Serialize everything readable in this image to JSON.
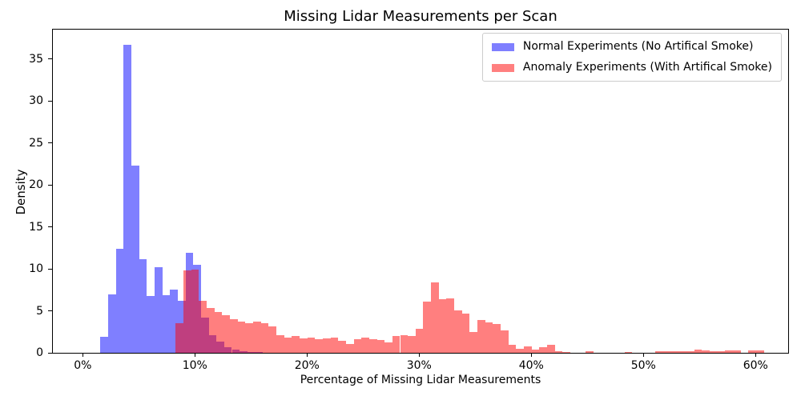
{
  "chart_data": {
    "type": "histogram",
    "title": "Missing Lidar Measurements per Scan",
    "xlabel": "Percentage of Missing Lidar Measurements",
    "ylabel": "Density",
    "grid": false,
    "background_color": "#ffffff",
    "legend": {
      "position": "upper right",
      "border_color": "#cccccc"
    },
    "x_axis": {
      "unit": "percent",
      "tick_values": [
        0,
        10,
        20,
        30,
        40,
        50,
        60
      ],
      "tick_labels": [
        "0%",
        "10%",
        "20%",
        "30%",
        "40%",
        "50%",
        "60%"
      ],
      "range_pct": [
        -2.66,
        62.98
      ]
    },
    "y_axis": {
      "tick_values": [
        0,
        5,
        10,
        15,
        20,
        25,
        30,
        35
      ],
      "tick_labels": [
        "0",
        "5",
        "10",
        "15",
        "20",
        "25",
        "30",
        "35"
      ],
      "range": [
        0,
        38.6
      ]
    },
    "series": [
      {
        "name": "Normal Experiments (No Artifical Smoke)",
        "fill": "rgba(0,0,255,0.5)",
        "legend_color": "#7f7fff",
        "bin_start_pct": 1.57,
        "bin_width_pct": 0.69,
        "densities": [
          1.9,
          7.0,
          12.4,
          36.7,
          22.3,
          11.2,
          6.8,
          10.2,
          6.9,
          7.5,
          6.2,
          11.95,
          10.45,
          4.2,
          2.1,
          1.3,
          0.7,
          0.4,
          0.2,
          0.1,
          0.08
        ]
      },
      {
        "name": "Anomaly Experiments (With Artifical Smoke)",
        "fill": "rgba(255,0,0,0.5)",
        "legend_color": "#ff7f7f",
        "bin_start_pct": 8.29,
        "bin_width_pct": 0.69,
        "densities": [
          3.5,
          9.8,
          9.95,
          6.2,
          5.35,
          4.9,
          4.5,
          4.0,
          3.75,
          3.5,
          3.7,
          3.5,
          3.1,
          2.1,
          1.8,
          2.0,
          1.7,
          1.8,
          1.6,
          1.7,
          1.8,
          1.4,
          1.05,
          1.6,
          1.8,
          1.6,
          1.5,
          1.2,
          2.0,
          2.1,
          2.0,
          2.9,
          6.1,
          8.4,
          6.4,
          6.45,
          5.05,
          4.7,
          2.45,
          3.9,
          3.6,
          3.4,
          2.65,
          1.0,
          0.5,
          0.73,
          0.41,
          0.64,
          0.95,
          0.22,
          0.1,
          0,
          0,
          0.16,
          0,
          0,
          0,
          0,
          0.13,
          0,
          0,
          0,
          0.15,
          0.15,
          0.15,
          0.15,
          0.15,
          0.41,
          0.32,
          0.15,
          0.16,
          0.3,
          0.27,
          0,
          0.27,
          0.27
        ]
      }
    ]
  }
}
